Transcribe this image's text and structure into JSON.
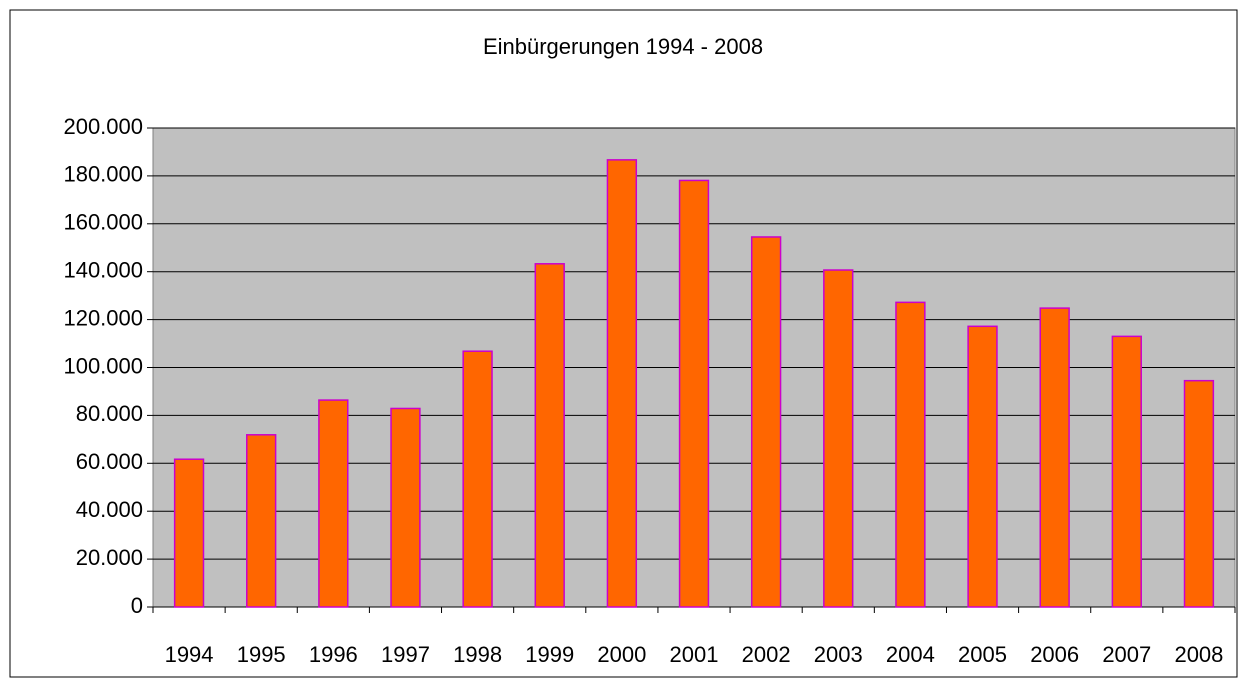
{
  "chart_data": {
    "type": "bar",
    "title": "Einbürgerungen 1994 - 2008",
    "categories": [
      "1994",
      "1995",
      "1996",
      "1997",
      "1998",
      "1999",
      "2000",
      "2001",
      "2002",
      "2003",
      "2004",
      "2005",
      "2006",
      "2007",
      "2008"
    ],
    "values": [
      61700,
      71900,
      86400,
      82900,
      106800,
      143300,
      186700,
      178100,
      154500,
      140700,
      127200,
      117200,
      124800,
      113000,
      94500
    ],
    "color": "#ff6600",
    "edge_color": "#cc00cc",
    "ylim": [
      0,
      200000
    ],
    "yticks": [
      0,
      {
        "value": 20000,
        "label": "20.000"
      },
      {
        "value": 40000,
        "label": "40.000"
      },
      {
        "value": 60000,
        "label": "60.000"
      },
      {
        "value": 80000,
        "label": "80.000"
      },
      {
        "value": 100000,
        "label": "100.000"
      },
      {
        "value": 120000,
        "label": "120.000"
      },
      {
        "value": 140000,
        "label": "140.000"
      },
      {
        "value": 160000,
        "label": "160.000"
      },
      {
        "value": 180000,
        "label": "180.000"
      },
      {
        "value": 200000,
        "label": "200.000"
      }
    ],
    "grid": true
  }
}
